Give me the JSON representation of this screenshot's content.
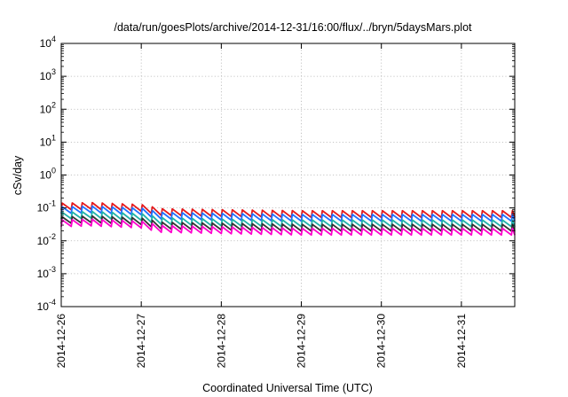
{
  "chart_data": {
    "type": "line",
    "title": "/data/run/goesPlots/archive/2014-12-31/16:00/flux/../bryn/5daysMars.plot",
    "xlabel": "Coordinated Universal Time (UTC)",
    "ylabel": "cSv/day",
    "x_axis": {
      "type": "date",
      "min": "2014-12-26",
      "max": "2014-12-31T16:00",
      "tick_labels": [
        "2014-12-26",
        "2014-12-27",
        "2014-12-28",
        "2014-12-29",
        "2014-12-30",
        "2014-12-31"
      ]
    },
    "y_axis": {
      "scale": "log",
      "min": 0.0001,
      "max": 10000,
      "tick_exponents": [
        "-4",
        "-3",
        "-2",
        "-1",
        "0",
        "1",
        "2",
        "3",
        "4"
      ]
    },
    "grid": true,
    "legend": "none",
    "pattern": {
      "shape": "sawtooth",
      "cycles_per_day": 8,
      "peak_to_trough_ratio": 1.6,
      "note_bump": "levels rise slightly near 2014-12-26T09:00 and 2014-12-27T00:00"
    },
    "series": [
      {
        "color": "#e41a1c",
        "base_values": [
          0.11,
          0.115,
          0.1,
          0.075,
          0.07,
          0.065,
          0.065,
          0.065
        ]
      },
      {
        "color": "#1f6fff",
        "base_values": [
          0.085,
          0.09,
          0.078,
          0.058,
          0.054,
          0.05,
          0.05,
          0.05
        ]
      },
      {
        "color": "#20b2aa",
        "base_values": [
          0.058,
          0.062,
          0.053,
          0.04,
          0.036,
          0.034,
          0.034,
          0.034
        ]
      },
      {
        "color": "#333333",
        "base_values": [
          0.042,
          0.045,
          0.039,
          0.029,
          0.027,
          0.025,
          0.025,
          0.025
        ]
      },
      {
        "color": "#ff00cc",
        "base_values": [
          0.034,
          0.036,
          0.031,
          0.023,
          0.021,
          0.019,
          0.019,
          0.019
        ]
      }
    ],
    "base_times": [
      "2014-12-26",
      "2014-12-26T09:00",
      "2014-12-27",
      "2014-12-27T06:00",
      "2014-12-28",
      "2014-12-29",
      "2014-12-30",
      "2014-12-31T16:00"
    ]
  }
}
